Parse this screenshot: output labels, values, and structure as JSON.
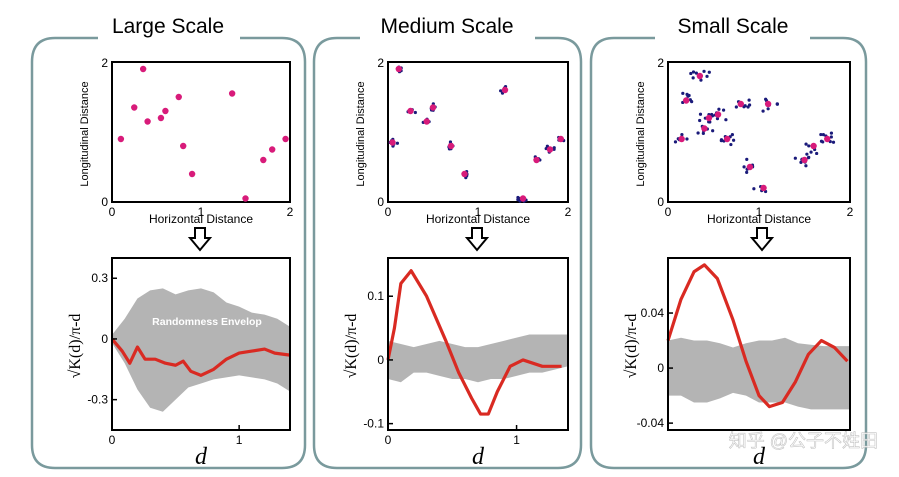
{
  "panels": [
    {
      "id": "large",
      "title": "Large Scale",
      "scatter": {
        "xlabel": "Horizontal Distance",
        "ylabel": "Longitudinal Distance",
        "xticks": [
          "0",
          "1",
          "2"
        ],
        "yticks": [
          "0",
          "2"
        ],
        "centers": [
          [
            0.1,
            0.9
          ],
          [
            0.25,
            1.35
          ],
          [
            0.35,
            1.9
          ],
          [
            0.4,
            1.15
          ],
          [
            0.6,
            1.3
          ],
          [
            0.55,
            1.2
          ],
          [
            0.75,
            1.5
          ],
          [
            0.8,
            0.8
          ],
          [
            0.9,
            0.4
          ],
          [
            1.35,
            1.55
          ],
          [
            1.5,
            0.05
          ],
          [
            1.7,
            0.6
          ],
          [
            1.8,
            0.75
          ],
          [
            1.95,
            0.9
          ]
        ],
        "has_clusters": false
      },
      "kplot": {
        "ylabel": "√K(d)/π-d",
        "xlabel": "d",
        "yticks": [
          "0.3",
          "0",
          "-0.3"
        ],
        "ytick_values": [
          0.3,
          0,
          -0.3
        ],
        "xticks": [
          "0",
          "1"
        ],
        "xtick_values": [
          0,
          1
        ],
        "xlim": [
          0,
          1.4
        ],
        "ylim": [
          -0.45,
          0.4
        ],
        "envelope_label": "Randomness Envelop",
        "envelope_upper": [
          0.02,
          0.1,
          0.2,
          0.24,
          0.25,
          0.22,
          0.24,
          0.25,
          0.23,
          0.18,
          0.16,
          0.13,
          0.12,
          0.1,
          0.06
        ],
        "envelope_lower": [
          -0.02,
          -0.12,
          -0.25,
          -0.34,
          -0.36,
          -0.3,
          -0.24,
          -0.22,
          -0.2,
          -0.19,
          -0.18,
          -0.19,
          -0.2,
          -0.22,
          -0.26
        ],
        "envelope_x": [
          0,
          0.1,
          0.2,
          0.3,
          0.4,
          0.5,
          0.6,
          0.7,
          0.8,
          0.9,
          1.0,
          1.1,
          1.2,
          1.3,
          1.4
        ],
        "curve": [
          [
            0,
            0
          ],
          [
            0.08,
            -0.06
          ],
          [
            0.14,
            -0.12
          ],
          [
            0.2,
            -0.04
          ],
          [
            0.26,
            -0.1
          ],
          [
            0.34,
            -0.1
          ],
          [
            0.42,
            -0.12
          ],
          [
            0.5,
            -0.13
          ],
          [
            0.56,
            -0.11
          ],
          [
            0.62,
            -0.16
          ],
          [
            0.7,
            -0.18
          ],
          [
            0.8,
            -0.15
          ],
          [
            0.9,
            -0.1
          ],
          [
            1.0,
            -0.07
          ],
          [
            1.1,
            -0.06
          ],
          [
            1.2,
            -0.05
          ],
          [
            1.28,
            -0.07
          ],
          [
            1.4,
            -0.08
          ]
        ]
      }
    },
    {
      "id": "medium",
      "title": "Medium Scale",
      "scatter": {
        "xlabel": "Horizontal Distance",
        "ylabel": "Longitudinal Distance",
        "xticks": [
          "0",
          "1",
          "2"
        ],
        "yticks": [
          "0",
          "2"
        ],
        "centers": [
          [
            0.12,
            1.9
          ],
          [
            0.25,
            1.3
          ],
          [
            0.43,
            1.15
          ],
          [
            0.5,
            1.35
          ],
          [
            0.05,
            0.85
          ],
          [
            0.7,
            0.8
          ],
          [
            0.85,
            0.4
          ],
          [
            1.3,
            1.6
          ],
          [
            1.65,
            0.6
          ],
          [
            1.8,
            0.75
          ],
          [
            1.92,
            0.9
          ],
          [
            1.5,
            0.05
          ]
        ],
        "has_clusters": true,
        "cluster_spread": 0.06,
        "cluster_size": 6
      },
      "kplot": {
        "ylabel": "√K(d)/π-d",
        "xlabel": "d",
        "yticks": [
          "0.1",
          "0",
          "-0.1"
        ],
        "ytick_values": [
          0.1,
          0,
          -0.1
        ],
        "xticks": [
          "0",
          "1"
        ],
        "xtick_values": [
          0,
          1
        ],
        "xlim": [
          0,
          1.4
        ],
        "ylim": [
          -0.11,
          0.16
        ],
        "envelope_x": [
          0,
          0.1,
          0.2,
          0.3,
          0.4,
          0.5,
          0.6,
          0.7,
          0.8,
          0.9,
          1.0,
          1.1,
          1.2,
          1.3,
          1.4
        ],
        "envelope_upper": [
          0.03,
          0.025,
          0.02,
          0.025,
          0.03,
          0.025,
          0.02,
          0.02,
          0.025,
          0.03,
          0.035,
          0.04,
          0.04,
          0.04,
          0.04
        ],
        "envelope_lower": [
          -0.03,
          -0.035,
          -0.02,
          -0.02,
          -0.025,
          -0.03,
          -0.03,
          -0.035,
          -0.03,
          -0.03,
          -0.025,
          -0.02,
          -0.02,
          -0.015,
          -0.01
        ],
        "curve": [
          [
            0,
            0
          ],
          [
            0.05,
            0.05
          ],
          [
            0.1,
            0.12
          ],
          [
            0.18,
            0.14
          ],
          [
            0.3,
            0.1
          ],
          [
            0.45,
            0.03
          ],
          [
            0.55,
            -0.02
          ],
          [
            0.65,
            -0.06
          ],
          [
            0.72,
            -0.085
          ],
          [
            0.78,
            -0.085
          ],
          [
            0.85,
            -0.05
          ],
          [
            0.95,
            -0.01
          ],
          [
            1.05,
            0.0
          ],
          [
            1.2,
            -0.01
          ],
          [
            1.35,
            -0.01
          ]
        ]
      }
    },
    {
      "id": "small",
      "title": "Small Scale",
      "scatter": {
        "xlabel": "Horizontal Distance",
        "ylabel": "Longitudinal Distance",
        "xticks": [
          "0",
          "1",
          "2"
        ],
        "yticks": [
          "0",
          "2"
        ],
        "centers": [
          [
            0.35,
            1.8
          ],
          [
            0.2,
            1.45
          ],
          [
            0.45,
            1.2
          ],
          [
            0.55,
            1.25
          ],
          [
            0.4,
            1.05
          ],
          [
            0.65,
            0.9
          ],
          [
            0.8,
            1.4
          ],
          [
            0.15,
            0.9
          ],
          [
            1.1,
            1.4
          ],
          [
            0.9,
            0.5
          ],
          [
            1.05,
            0.2
          ],
          [
            1.5,
            0.6
          ],
          [
            1.6,
            0.8
          ],
          [
            1.75,
            0.9
          ]
        ],
        "has_clusters": true,
        "cluster_spread": 0.12,
        "cluster_size": 8
      },
      "kplot": {
        "ylabel": "√K(d)/π-d",
        "xlabel": "d",
        "yticks": [
          "0.04",
          "0",
          "-0.04"
        ],
        "ytick_values": [
          0.04,
          0,
          -0.04
        ],
        "xticks": [],
        "xtick_values": [],
        "xlim": [
          0,
          1.4
        ],
        "ylim": [
          -0.045,
          0.08
        ],
        "envelope_x": [
          0,
          0.1,
          0.2,
          0.3,
          0.4,
          0.5,
          0.6,
          0.7,
          0.8,
          0.9,
          1.0,
          1.1,
          1.2,
          1.3,
          1.4
        ],
        "envelope_upper": [
          0.02,
          0.022,
          0.02,
          0.02,
          0.018,
          0.015,
          0.018,
          0.02,
          0.02,
          0.022,
          0.018,
          0.017,
          0.016,
          0.016,
          0.016
        ],
        "envelope_lower": [
          -0.02,
          -0.02,
          -0.025,
          -0.025,
          -0.022,
          -0.018,
          -0.02,
          -0.025,
          -0.025,
          -0.025,
          -0.028,
          -0.03,
          -0.03,
          -0.03,
          -0.03
        ],
        "curve": [
          [
            0,
            0.02
          ],
          [
            0.1,
            0.05
          ],
          [
            0.2,
            0.07
          ],
          [
            0.28,
            0.075
          ],
          [
            0.38,
            0.065
          ],
          [
            0.5,
            0.035
          ],
          [
            0.6,
            0.005
          ],
          [
            0.7,
            -0.02
          ],
          [
            0.78,
            -0.028
          ],
          [
            0.88,
            -0.025
          ],
          [
            0.98,
            -0.01
          ],
          [
            1.08,
            0.01
          ],
          [
            1.18,
            0.02
          ],
          [
            1.28,
            0.015
          ],
          [
            1.38,
            0.005
          ]
        ]
      }
    }
  ],
  "arrow_icon": "down-arrow-icon",
  "colors": {
    "frame": "#7a9a9d",
    "center_point": "#d81b7a",
    "cluster_point": "#1a1a7a",
    "curve": "#d92a22",
    "envelope": "#b4b4b4",
    "axis": "#000000"
  },
  "watermark": "知乎 @公子不姓田"
}
